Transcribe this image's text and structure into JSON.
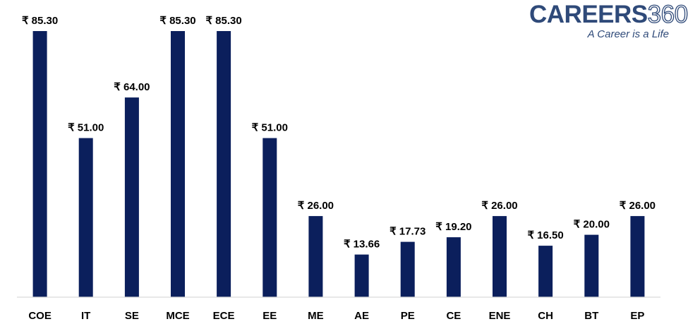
{
  "logo": {
    "word": "CAREERS",
    "number": "360",
    "tagline": "A Career is a Life"
  },
  "colors": {
    "bar": "#0b1f5c",
    "axis": "#d9d9d9",
    "text": "#000000",
    "logo": "#2f4a79"
  },
  "chart_data": {
    "type": "bar",
    "categories": [
      "COE",
      "IT",
      "SE",
      "MCE",
      "ECE",
      "EE",
      "ME",
      "AE",
      "PE",
      "CE",
      "ENE",
      "CH",
      "BT",
      "EP"
    ],
    "values": [
      85.3,
      51.0,
      64.0,
      85.3,
      85.3,
      51.0,
      26.0,
      13.66,
      17.73,
      19.2,
      26.0,
      16.5,
      20.0,
      26.0
    ],
    "data_labels": [
      "₹ 85.30",
      "₹ 51.00",
      "₹ 64.00",
      "₹ 85.30",
      "₹ 85.30",
      "₹ 51.00",
      "₹ 26.00",
      "₹ 13.66",
      "₹ 17.73",
      "₹ 19.20",
      "₹ 26.00",
      "₹ 16.50",
      "₹ 20.00",
      "₹ 26.00"
    ],
    "title": "",
    "xlabel": "",
    "ylabel": "",
    "ylim": [
      0,
      85.3
    ],
    "grid": false,
    "legend": "none"
  }
}
